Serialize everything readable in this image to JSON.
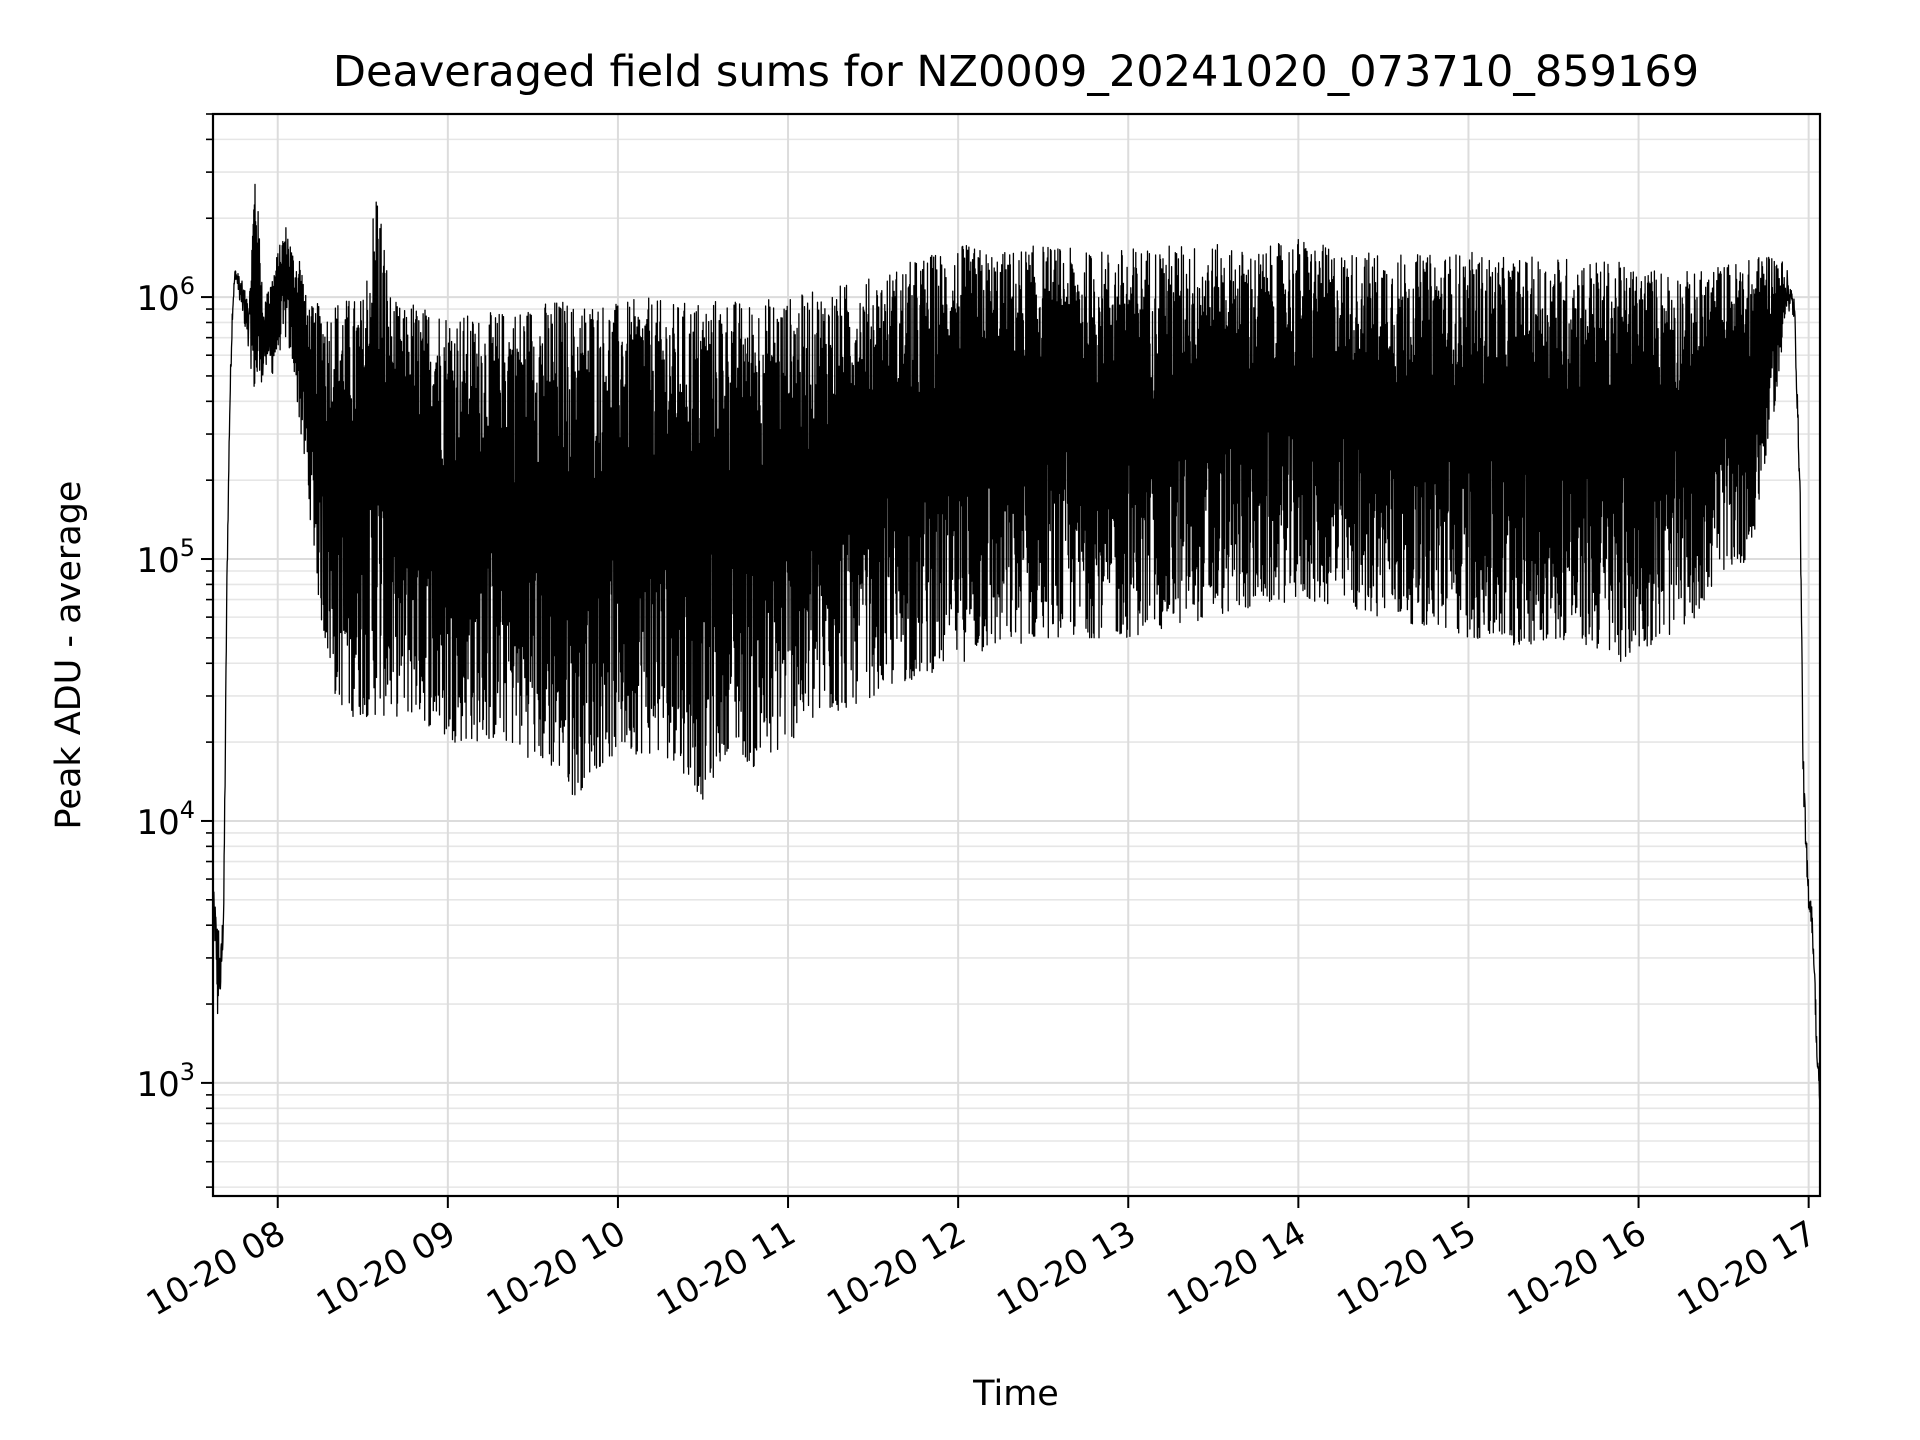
{
  "chart_data": {
    "type": "line",
    "title": "Deaveraged field sums for NZ0009_20241020_073710_859169",
    "xlabel": "Time",
    "ylabel": "Peak ADU - average",
    "y_scale": "log",
    "ylim": [
      370,
      5000000
    ],
    "xlim": [
      "2024-10-20 07:37:10",
      "2024-10-20 17:04:00"
    ],
    "x_ticks": [
      "10-20 08",
      "10-20 09",
      "10-20 10",
      "10-20 11",
      "10-20 12",
      "10-20 13",
      "10-20 14",
      "10-20 15",
      "10-20 16",
      "10-20 17"
    ],
    "y_ticks": [
      {
        "value": 1000,
        "base": "10",
        "exp": "3"
      },
      {
        "value": 10000,
        "base": "10",
        "exp": "4"
      },
      {
        "value": 100000,
        "base": "10",
        "exp": "5"
      },
      {
        "value": 1000000,
        "base": "10",
        "exp": "6"
      }
    ],
    "grid": true,
    "line_color": "#000000",
    "series": [
      {
        "x": [
          "07:37",
          "07:38",
          "07:39",
          "07:40",
          "07:41",
          "07:42",
          "07:43",
          "07:44",
          "07:45",
          "07:47",
          "07:50",
          "07:52",
          "07:55",
          "07:58",
          "08:00",
          "08:03",
          "08:06",
          "08:08",
          "08:10",
          "08:13",
          "08:15",
          "08:18",
          "08:20",
          "08:25",
          "08:30",
          "08:35",
          "08:40",
          "08:45",
          "08:48",
          "08:50",
          "08:55",
          "09:00",
          "09:10",
          "09:20",
          "09:30",
          "09:40",
          "09:45",
          "09:50",
          "10:00",
          "10:10",
          "10:20",
          "10:30",
          "10:40",
          "10:45",
          "10:50",
          "11:00",
          "11:15",
          "11:30",
          "11:45",
          "12:00",
          "12:15",
          "12:30",
          "12:45",
          "13:00",
          "13:15",
          "13:30",
          "13:45",
          "14:00",
          "14:15",
          "14:30",
          "14:45",
          "15:00",
          "15:15",
          "15:30",
          "15:45",
          "15:55",
          "16:00",
          "16:10",
          "16:20",
          "16:30",
          "16:40",
          "16:45",
          "16:50",
          "16:52",
          "16:55",
          "16:57",
          "16:58",
          "16:59",
          "17:00",
          "17:01",
          "17:02",
          "17:03",
          "17:04"
        ],
        "upper": [
          6000,
          5000,
          4000,
          3500,
          6000,
          80000,
          400000,
          1000000,
          1300000,
          1200000,
          1000000,
          3300000,
          1000000,
          1200000,
          1500000,
          1900000,
          1400000,
          1500000,
          1000000,
          900000,
          1000000,
          900000,
          1000000,
          1000000,
          1000000,
          3000000,
          1000000,
          900000,
          1000000,
          900000,
          950000,
          900000,
          850000,
          900000,
          950000,
          1000000,
          950000,
          1000000,
          950000,
          1000000,
          950000,
          1000000,
          1000000,
          950000,
          1000000,
          1000000,
          1100000,
          1200000,
          1400000,
          1600000,
          1500000,
          1600000,
          1500000,
          1550000,
          1600000,
          1600000,
          1500000,
          1700000,
          1500000,
          1500000,
          1450000,
          1500000,
          1400000,
          1450000,
          1400000,
          1350000,
          1300000,
          1300000,
          1250000,
          1350000,
          1400000,
          1500000,
          1400000,
          1350000,
          1000000,
          200000,
          20000,
          10000,
          6000,
          5000,
          3000,
          1500,
          900
        ],
        "lower": [
          4000,
          3000,
          1500,
          2000,
          4000,
          60000,
          300000,
          800000,
          1200000,
          900000,
          600000,
          400000,
          500000,
          500000,
          600000,
          700000,
          500000,
          300000,
          200000,
          100000,
          60000,
          40000,
          30000,
          25000,
          25000,
          25000,
          25000,
          25000,
          25000,
          25000,
          22000,
          20000,
          20000,
          20000,
          17000,
          15000,
          12000,
          15000,
          18000,
          18000,
          17000,
          12000,
          20000,
          17000,
          15000,
          20000,
          25000,
          30000,
          35000,
          40000,
          45000,
          50000,
          50000,
          50000,
          55000,
          60000,
          65000,
          70000,
          65000,
          60000,
          55000,
          50000,
          45000,
          50000,
          45000,
          40000,
          45000,
          50000,
          60000,
          90000,
          100000,
          250000,
          500000,
          900000,
          800000,
          150000,
          15000,
          6000,
          4500,
          4000,
          2500,
          1000,
          800
        ]
      }
    ]
  }
}
